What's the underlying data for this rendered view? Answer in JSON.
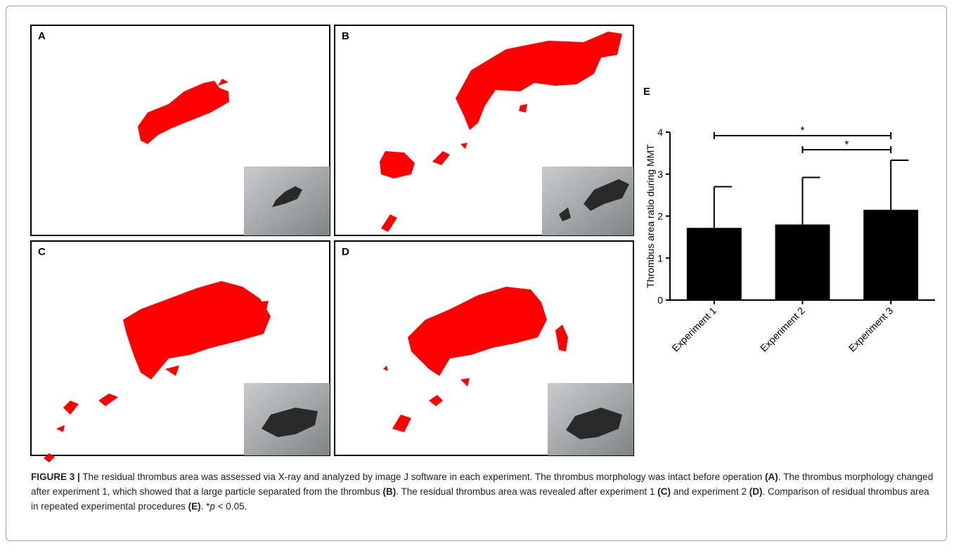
{
  "panels": {
    "a": "A",
    "b": "B",
    "c": "C",
    "d": "D"
  },
  "chart_data": {
    "type": "bar",
    "label": "E",
    "categories": [
      "Experiment 1",
      "Experiment 2",
      "Experiment 3"
    ],
    "series": [
      {
        "name": "Thrombus area ratio",
        "color": "#000000",
        "values": [
          1.72,
          1.8,
          2.15
        ],
        "errors": [
          0.98,
          1.12,
          1.18
        ]
      }
    ],
    "ylabel": "Thrombus area ratio during MMT",
    "ylim": [
      0,
      4
    ],
    "yticks": [
      0,
      1,
      2,
      3,
      4
    ],
    "annotations": [
      "*",
      "*"
    ]
  },
  "caption": {
    "segments": [
      "FIGURE 3 |",
      " The residual thrombus area was assessed via X-ray and analyzed by image J software in each experiment. The thrombus morphology was intact before operation ",
      "(A)",
      ". The thrombus morphology changed after experiment 1, which showed that a large particle separated from the thrombus ",
      "(B)",
      ". The residual thrombus area was revealed after experiment 1 ",
      "(C)",
      " and experiment 2 ",
      "(D)",
      ". Comparison of residual thrombus area in repeated experimental procedures ",
      "(E)",
      ". *",
      "p",
      " < 0.05."
    ]
  }
}
